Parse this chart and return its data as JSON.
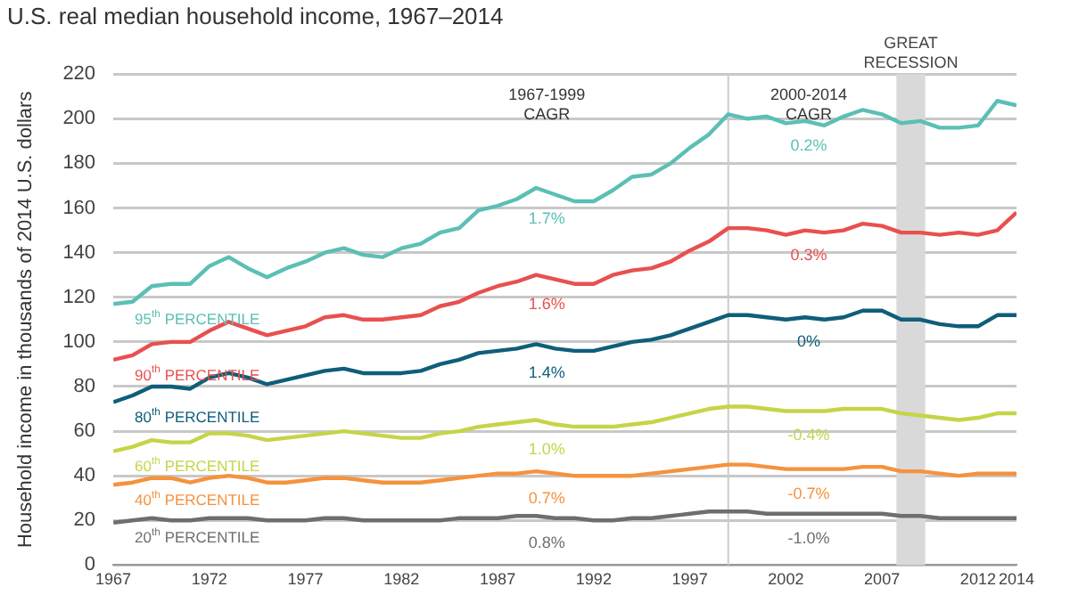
{
  "chart_data": {
    "type": "line",
    "title": "U.S. real median household income, 1967–2014",
    "ylabel": "Household income in thousands of 2014 U.S. dollars",
    "x": [
      1967,
      1968,
      1969,
      1970,
      1971,
      1972,
      1973,
      1974,
      1975,
      1976,
      1977,
      1978,
      1979,
      1980,
      1981,
      1982,
      1983,
      1984,
      1985,
      1986,
      1987,
      1988,
      1989,
      1990,
      1991,
      1992,
      1993,
      1994,
      1995,
      1996,
      1997,
      1998,
      1999,
      2000,
      2001,
      2002,
      2003,
      2004,
      2005,
      2006,
      2007,
      2008,
      2009,
      2010,
      2011,
      2012,
      2013,
      2014
    ],
    "series": [
      {
        "name": "95$^{th}$ PERCENTILE",
        "color": "#5bbfb5",
        "values": [
          117,
          118,
          125,
          126,
          126,
          134,
          138,
          133,
          129,
          133,
          136,
          140,
          142,
          139,
          138,
          142,
          144,
          149,
          151,
          159,
          161,
          164,
          169,
          166,
          163,
          163,
          168,
          174,
          175,
          180,
          187,
          193,
          202,
          200,
          201,
          198,
          199,
          197,
          201,
          204,
          202,
          198,
          199,
          196,
          196,
          197,
          208,
          206
        ]
      },
      {
        "name": "90$^{th}$ PERCENTILE",
        "color": "#e8504f",
        "values": [
          92,
          94,
          99,
          100,
          100,
          105,
          109,
          106,
          103,
          105,
          107,
          111,
          112,
          110,
          110,
          111,
          112,
          116,
          118,
          122,
          125,
          127,
          130,
          128,
          126,
          126,
          130,
          132,
          133,
          136,
          141,
          145,
          151,
          151,
          150,
          148,
          150,
          149,
          150,
          153,
          152,
          149,
          149,
          148,
          149,
          148,
          150,
          158
        ]
      },
      {
        "name": "80$^{th}$ PERCENTILE",
        "color": "#0f5e7a",
        "values": [
          73,
          76,
          80,
          80,
          79,
          84,
          86,
          84,
          81,
          83,
          85,
          87,
          88,
          86,
          86,
          86,
          87,
          90,
          92,
          95,
          96,
          97,
          99,
          97,
          96,
          96,
          98,
          100,
          101,
          103,
          106,
          109,
          112,
          112,
          111,
          110,
          111,
          110,
          111,
          114,
          114,
          110,
          110,
          108,
          107,
          107,
          112,
          112
        ]
      },
      {
        "name": "60$^{th}$ PERCENTILE",
        "color": "#c6d448",
        "values": [
          51,
          53,
          56,
          55,
          55,
          59,
          59,
          58,
          56,
          57,
          58,
          59,
          60,
          59,
          58,
          57,
          57,
          59,
          60,
          62,
          63,
          64,
          65,
          63,
          62,
          62,
          62,
          63,
          64,
          66,
          68,
          70,
          71,
          71,
          70,
          69,
          69,
          69,
          70,
          70,
          70,
          68,
          67,
          66,
          65,
          66,
          68,
          68
        ]
      },
      {
        "name": "40$^{th}$ PERCENTILE",
        "color": "#f5923e",
        "values": [
          36,
          37,
          39,
          39,
          37,
          39,
          40,
          39,
          37,
          37,
          38,
          39,
          39,
          38,
          37,
          37,
          37,
          38,
          39,
          40,
          41,
          41,
          42,
          41,
          40,
          40,
          40,
          40,
          41,
          42,
          43,
          44,
          45,
          45,
          44,
          43,
          43,
          43,
          43,
          44,
          44,
          42,
          42,
          41,
          40,
          41,
          41,
          41
        ]
      },
      {
        "name": "20$^{th}$ PERCENTILE",
        "color": "#6d6e70",
        "values": [
          19,
          20,
          21,
          20,
          20,
          21,
          21,
          21,
          20,
          20,
          20,
          21,
          21,
          20,
          20,
          20,
          20,
          20,
          21,
          21,
          21,
          22,
          22,
          21,
          21,
          20,
          20,
          21,
          21,
          22,
          23,
          24,
          24,
          24,
          23,
          23,
          23,
          23,
          23,
          23,
          23,
          22,
          22,
          21,
          21,
          21,
          21,
          21
        ]
      }
    ],
    "xlim": [
      1967,
      2014
    ],
    "xticks": [
      1967,
      1972,
      1977,
      1982,
      1987,
      1992,
      1997,
      2002,
      2007,
      2012,
      2014
    ],
    "ylim": [
      0,
      220
    ],
    "yticks": [
      0,
      20,
      40,
      60,
      80,
      100,
      120,
      140,
      160,
      180,
      200,
      220
    ],
    "grid": "y",
    "legend": false,
    "marker": "none",
    "line_style": "solid",
    "ref_lines": [
      {
        "axis": "x",
        "value": 1999,
        "color": "#cccccc"
      }
    ],
    "bands": [
      {
        "axis": "x",
        "from": 2007.75,
        "to": 2009.25,
        "label": "GREAT\nRECESSION",
        "color": "#d9d9d9"
      }
    ],
    "annotations": [
      "1967-1999\nCAGR",
      "2000-2014\nCAGR",
      "1.7%",
      "1.6%",
      "1.4%",
      "1.0%",
      "0.7%",
      "0.8%",
      "0.2%",
      "0.3%",
      "0%",
      "-0.4%",
      "-0.7%",
      "-1.0%"
    ]
  }
}
